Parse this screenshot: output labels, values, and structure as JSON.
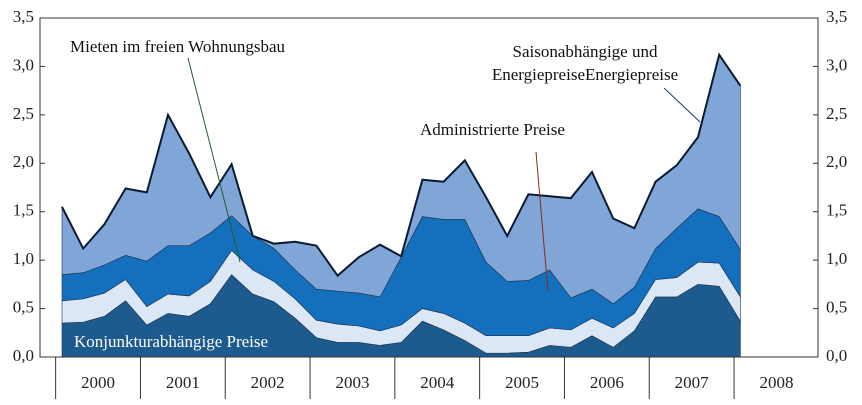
{
  "chart_data": {
    "type": "stacked-area",
    "ylim": [
      0,
      3.5
    ],
    "yticks": [
      {
        "value": 0,
        "label": "0,0"
      },
      {
        "value": 0.5,
        "label": "0,5"
      },
      {
        "value": 1,
        "label": "1,0"
      },
      {
        "value": 1.5,
        "label": "1,5"
      },
      {
        "value": 2,
        "label": "2,0"
      },
      {
        "value": 2.5,
        "label": "2,5"
      },
      {
        "value": 3,
        "label": "3,0"
      },
      {
        "value": 3.5,
        "label": "3,5"
      }
    ],
    "year_labels": [
      2000,
      2001,
      2002,
      2003,
      2004,
      2005,
      2006,
      2007,
      2008
    ],
    "series": [
      {
        "name": "Konjunkturabhängige Preise",
        "color": "#1d5a8e",
        "values": [
          0.35,
          0.36,
          0.42,
          0.58,
          0.33,
          0.45,
          0.42,
          0.55,
          0.85,
          0.65,
          0.57,
          0.4,
          0.2,
          0.15,
          0.15,
          0.12,
          0.15,
          0.37,
          0.28,
          0.17,
          0.04,
          0.04,
          0.05,
          0.12,
          0.1,
          0.22,
          0.1,
          0.27,
          0.62,
          0.62,
          0.75,
          0.73,
          0.37
        ]
      },
      {
        "name": "Mieten im freien Wohnungsbau",
        "color": "#dbe7f5",
        "values": [
          0.23,
          0.24,
          0.24,
          0.22,
          0.19,
          0.2,
          0.21,
          0.23,
          0.25,
          0.25,
          0.21,
          0.2,
          0.18,
          0.19,
          0.17,
          0.15,
          0.18,
          0.13,
          0.17,
          0.18,
          0.18,
          0.18,
          0.17,
          0.18,
          0.18,
          0.18,
          0.2,
          0.18,
          0.18,
          0.2,
          0.23,
          0.24,
          0.25
        ]
      },
      {
        "name": "Administrierte Preise",
        "color": "#1470bd",
        "values": [
          0.27,
          0.27,
          0.29,
          0.25,
          0.47,
          0.5,
          0.52,
          0.5,
          0.36,
          0.35,
          0.34,
          0.3,
          0.32,
          0.34,
          0.34,
          0.35,
          0.7,
          0.95,
          0.97,
          1.07,
          0.76,
          0.56,
          0.57,
          0.6,
          0.33,
          0.3,
          0.25,
          0.27,
          0.32,
          0.51,
          0.55,
          0.48,
          0.49
        ]
      },
      {
        "name": "Saisonabhängige und EnergiepreiseEnergiepreise",
        "color": "#7fa6d6",
        "values": [
          0.7,
          0.25,
          0.42,
          0.69,
          0.71,
          1.35,
          0.95,
          0.37,
          0.53,
          0.0,
          0.05,
          0.29,
          0.45,
          0.16,
          0.37,
          0.54,
          0.01,
          0.38,
          0.39,
          0.61,
          0.67,
          0.47,
          0.89,
          0.76,
          1.03,
          1.21,
          0.88,
          0.61,
          0.69,
          0.65,
          0.74,
          1.67,
          1.69
        ]
      }
    ]
  }
}
